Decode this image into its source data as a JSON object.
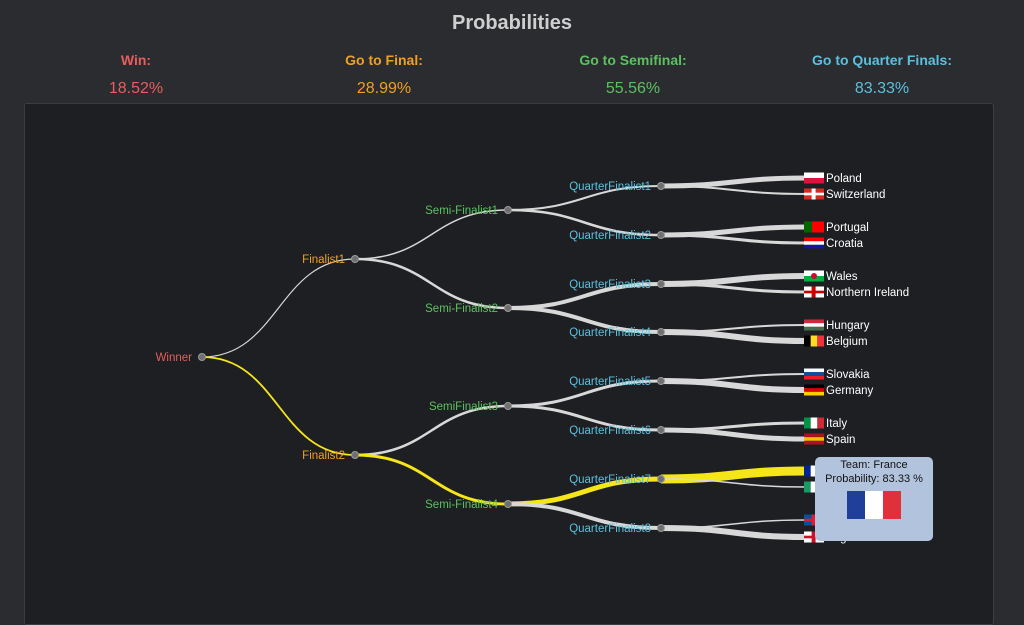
{
  "title": "Probabilities",
  "stats": [
    {
      "label": "Win:",
      "value": "18.52%",
      "color": "#e85d5d"
    },
    {
      "label": "Go to Final:",
      "value": "28.99%",
      "color": "#f0a020"
    },
    {
      "label": "Go to Semifinal:",
      "value": "55.56%",
      "color": "#5cc060"
    },
    {
      "label": "Go to Quarter Finals:",
      "value": "83.33%",
      "color": "#5bc0de"
    }
  ],
  "tree": {
    "winner": "Winner",
    "finalists": [
      "Finalist1",
      "Finalist2"
    ],
    "semifinalists": [
      "Semi-Finalist1",
      "Semi-Finalist2",
      "SemiFinalist3",
      "Semi-Finalist4"
    ],
    "quarterfinalists": [
      "QuarterFinalist1",
      "QuarterFinalist2",
      "QuarterFinalist3",
      "QuarterFinalist4",
      "QuarterFinalist5",
      "QuarterFinalist6",
      "QuarterFinalist7",
      "QuarterFinalist8"
    ],
    "teams": [
      "Poland",
      "Switzerland",
      "Portugal",
      "Croatia",
      "Wales",
      "Northern Ireland",
      "Hungary",
      "Belgium",
      "Slovakia",
      "Germany",
      "Italy",
      "Spain",
      "France",
      "Rep Of Ireland",
      "Iceland",
      "England"
    ],
    "highlight_team": "France",
    "highlight_color": "#f5e61a",
    "colors": {
      "winner": "#e85d5d",
      "finalist": "#f0a020",
      "semi": "#5cc060",
      "quarter": "#5bc0de",
      "link": "#d8d8d8"
    }
  },
  "tooltip": {
    "team_line": "Team: France",
    "prob_line": "Probability: 83.33 %",
    "flag_icon": "france-flag-icon"
  }
}
